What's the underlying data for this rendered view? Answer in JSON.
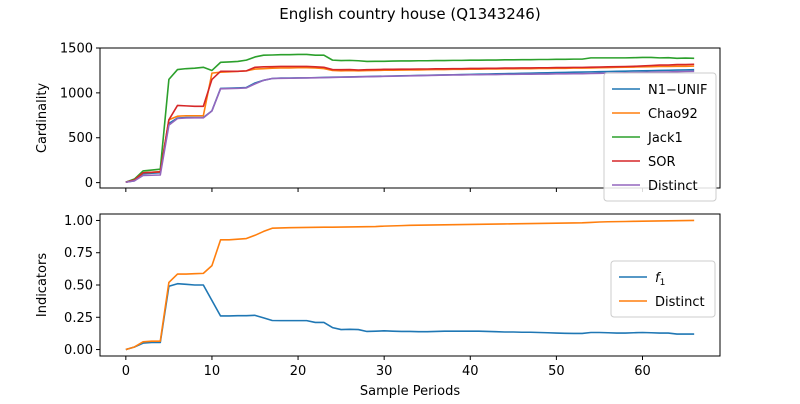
{
  "figure": {
    "title": "English country house (Q1343246)"
  },
  "chart_data": [
    {
      "type": "line",
      "ylabel": "Cardinality",
      "xlabel": "",
      "xlim": [
        -3,
        69
      ],
      "ylim": [
        -60,
        1500
      ],
      "xticks": [
        0,
        10,
        20,
        30,
        40,
        50,
        60
      ],
      "yticks": [
        0,
        500,
        1000,
        1500
      ],
      "ytick_labels": [
        "0",
        "500",
        "1000",
        "1500"
      ],
      "show_xtick_labels": false,
      "legend_position": "right",
      "x": [
        0,
        1,
        2,
        3,
        4,
        5,
        6,
        7,
        8,
        9,
        10,
        11,
        12,
        13,
        14,
        15,
        16,
        17,
        18,
        19,
        20,
        21,
        22,
        23,
        24,
        25,
        26,
        27,
        28,
        29,
        30,
        31,
        32,
        33,
        34,
        35,
        36,
        37,
        38,
        39,
        40,
        41,
        42,
        43,
        44,
        45,
        46,
        47,
        48,
        49,
        50,
        51,
        52,
        53,
        54,
        55,
        56,
        57,
        58,
        59,
        60,
        61,
        62,
        63,
        64,
        65,
        66
      ],
      "series": [
        {
          "name": "N1−UNIF",
          "color": "#1f77b4",
          "values": [
            5,
            20,
            100,
            105,
            110,
            660,
            720,
            725,
            725,
            725,
            800,
            1050,
            1052,
            1055,
            1060,
            1110,
            1140,
            1160,
            1165,
            1165,
            1167,
            1167,
            1170,
            1172,
            1175,
            1176,
            1178,
            1180,
            1182,
            1184,
            1186,
            1188,
            1190,
            1192,
            1194,
            1196,
            1198,
            1200,
            1202,
            1204,
            1206,
            1208,
            1210,
            1212,
            1214,
            1216,
            1218,
            1220,
            1222,
            1224,
            1226,
            1228,
            1230,
            1232,
            1234,
            1236,
            1238,
            1240,
            1242,
            1244,
            1246,
            1248,
            1250,
            1252,
            1254,
            1256,
            1258
          ]
        },
        {
          "name": "Chao92",
          "color": "#ff7f0e",
          "values": [
            5,
            25,
            110,
            115,
            120,
            700,
            740,
            745,
            745,
            745,
            1220,
            1230,
            1235,
            1240,
            1245,
            1265,
            1270,
            1275,
            1278,
            1278,
            1280,
            1280,
            1278,
            1270,
            1250,
            1245,
            1248,
            1245,
            1248,
            1250,
            1252,
            1252,
            1254,
            1256,
            1256,
            1258,
            1260,
            1260,
            1262,
            1262,
            1264,
            1264,
            1266,
            1266,
            1268,
            1268,
            1270,
            1270,
            1272,
            1272,
            1274,
            1274,
            1276,
            1276,
            1278,
            1280,
            1282,
            1284,
            1286,
            1288,
            1290,
            1292,
            1294,
            1294,
            1296,
            1296,
            1298
          ]
        },
        {
          "name": "Jack1",
          "color": "#2ca02c",
          "values": [
            5,
            40,
            130,
            140,
            150,
            1150,
            1260,
            1270,
            1275,
            1285,
            1250,
            1340,
            1345,
            1350,
            1365,
            1400,
            1420,
            1422,
            1425,
            1425,
            1428,
            1428,
            1420,
            1420,
            1365,
            1360,
            1362,
            1358,
            1350,
            1352,
            1352,
            1354,
            1356,
            1356,
            1358,
            1358,
            1360,
            1360,
            1362,
            1362,
            1364,
            1364,
            1366,
            1366,
            1368,
            1368,
            1370,
            1370,
            1372,
            1372,
            1374,
            1374,
            1376,
            1376,
            1390,
            1390,
            1390,
            1390,
            1390,
            1392,
            1395,
            1395,
            1390,
            1392,
            1385,
            1388,
            1385
          ]
        },
        {
          "name": "SOR",
          "color": "#d62728",
          "values": [
            5,
            30,
            110,
            115,
            120,
            700,
            860,
            855,
            850,
            850,
            1150,
            1240,
            1240,
            1240,
            1245,
            1285,
            1290,
            1292,
            1295,
            1295,
            1295,
            1295,
            1290,
            1285,
            1260,
            1258,
            1260,
            1255,
            1258,
            1260,
            1262,
            1262,
            1264,
            1264,
            1266,
            1266,
            1268,
            1268,
            1270,
            1270,
            1272,
            1272,
            1274,
            1274,
            1276,
            1276,
            1278,
            1278,
            1280,
            1280,
            1282,
            1282,
            1284,
            1284,
            1286,
            1288,
            1290,
            1292,
            1294,
            1296,
            1300,
            1305,
            1310,
            1310,
            1315,
            1315,
            1318
          ]
        },
        {
          "name": "Distinct",
          "color": "#9467bd",
          "values": [
            5,
            20,
            80,
            82,
            85,
            640,
            715,
            720,
            722,
            722,
            800,
            1045,
            1048,
            1050,
            1055,
            1100,
            1140,
            1160,
            1162,
            1163,
            1165,
            1166,
            1168,
            1170,
            1172,
            1174,
            1176,
            1178,
            1180,
            1182,
            1184,
            1186,
            1188,
            1190,
            1192,
            1194,
            1196,
            1198,
            1200,
            1200,
            1202,
            1202,
            1204,
            1204,
            1206,
            1206,
            1208,
            1208,
            1210,
            1210,
            1212,
            1212,
            1214,
            1214,
            1216,
            1218,
            1220,
            1222,
            1224,
            1226,
            1228,
            1230,
            1232,
            1234,
            1236,
            1238,
            1240
          ]
        }
      ]
    },
    {
      "type": "line",
      "ylabel": "Indicators",
      "xlabel": "Sample Periods",
      "xlim": [
        -3,
        69
      ],
      "ylim": [
        -0.05,
        1.05
      ],
      "xticks": [
        0,
        10,
        20,
        30,
        40,
        50,
        60
      ],
      "xtick_labels": [
        "0",
        "10",
        "20",
        "30",
        "40",
        "50",
        "60"
      ],
      "yticks": [
        0,
        0.25,
        0.5,
        0.75,
        1.0
      ],
      "ytick_labels": [
        "0.00",
        "0.25",
        "0.50",
        "0.75",
        "1.00"
      ],
      "show_xtick_labels": true,
      "legend_position": "right",
      "x": [
        0,
        1,
        2,
        3,
        4,
        5,
        6,
        7,
        8,
        9,
        10,
        11,
        12,
        13,
        14,
        15,
        16,
        17,
        18,
        19,
        20,
        21,
        22,
        23,
        24,
        25,
        26,
        27,
        28,
        29,
        30,
        31,
        32,
        33,
        34,
        35,
        36,
        37,
        38,
        39,
        40,
        41,
        42,
        43,
        44,
        45,
        46,
        47,
        48,
        49,
        50,
        51,
        52,
        53,
        54,
        55,
        56,
        57,
        58,
        59,
        60,
        61,
        62,
        63,
        64,
        65,
        66
      ],
      "series": [
        {
          "name": "f",
          "name_subscript": "1",
          "color": "#1f77b4",
          "values": [
            0,
            0.02,
            0.05,
            0.055,
            0.055,
            0.49,
            0.51,
            0.505,
            0.5,
            0.5,
            0.38,
            0.26,
            0.26,
            0.262,
            0.262,
            0.265,
            0.245,
            0.225,
            0.224,
            0.224,
            0.224,
            0.224,
            0.21,
            0.21,
            0.17,
            0.155,
            0.157,
            0.155,
            0.14,
            0.142,
            0.145,
            0.142,
            0.14,
            0.14,
            0.138,
            0.138,
            0.14,
            0.142,
            0.142,
            0.142,
            0.142,
            0.142,
            0.14,
            0.138,
            0.136,
            0.136,
            0.134,
            0.134,
            0.132,
            0.13,
            0.128,
            0.126,
            0.125,
            0.125,
            0.132,
            0.132,
            0.13,
            0.128,
            0.128,
            0.13,
            0.132,
            0.13,
            0.128,
            0.128,
            0.12,
            0.12,
            0.12
          ]
        },
        {
          "name": "Distinct",
          "color": "#ff7f0e",
          "values": [
            0,
            0.02,
            0.06,
            0.065,
            0.065,
            0.52,
            0.585,
            0.585,
            0.588,
            0.59,
            0.65,
            0.85,
            0.85,
            0.855,
            0.86,
            0.885,
            0.915,
            0.94,
            0.942,
            0.944,
            0.945,
            0.946,
            0.947,
            0.948,
            0.948,
            0.949,
            0.95,
            0.951,
            0.952,
            0.953,
            0.956,
            0.958,
            0.96,
            0.962,
            0.963,
            0.964,
            0.965,
            0.966,
            0.967,
            0.968,
            0.969,
            0.97,
            0.971,
            0.972,
            0.973,
            0.974,
            0.975,
            0.976,
            0.977,
            0.978,
            0.979,
            0.98,
            0.981,
            0.982,
            0.985,
            0.988,
            0.99,
            0.991,
            0.992,
            0.993,
            0.994,
            0.995,
            0.996,
            0.997,
            0.998,
            0.999,
            1.0
          ]
        }
      ]
    }
  ]
}
